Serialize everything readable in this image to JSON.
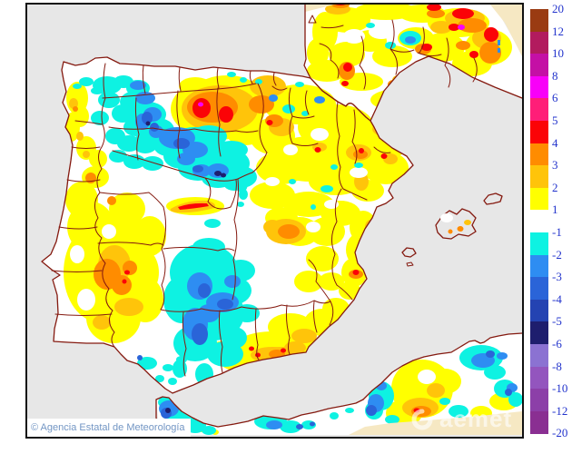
{
  "map": {
    "region": "Iberian Peninsula and Balearic Islands",
    "sea_color": "#E7E7E7",
    "land_color": "#FFFFFF",
    "outside_domain_color": "#F6E8C3",
    "boundary_line_color": "#84190F"
  },
  "legend": {
    "tick_labels": [
      "20",
      "12",
      "10",
      "8",
      "6",
      "5",
      "4",
      "3",
      "2",
      "1",
      "-1",
      "-2",
      "-3",
      "-4",
      "-5",
      "-6",
      "-8",
      "-10",
      "-12",
      "-20"
    ],
    "block_colors": [
      "#9A3B12",
      "#B21B5E",
      "#C410A5",
      "#F800F8",
      "#FF1E78",
      "#FB0307",
      "#FF8C00",
      "#FFC40A",
      "#FFFF00",
      "#FFFFFF",
      "#0EF2E2",
      "#2E8DF2",
      "#2A64D8",
      "#2443B2",
      "#1E1E6E",
      "#8B72D2",
      "#9355BE",
      "#8C3FA8",
      "#8A2F92"
    ],
    "label_color": "#2233CC"
  },
  "footer": {
    "attribution": "© Agencia Estatal de Meteorología"
  },
  "watermark": {
    "text": "aemet"
  }
}
